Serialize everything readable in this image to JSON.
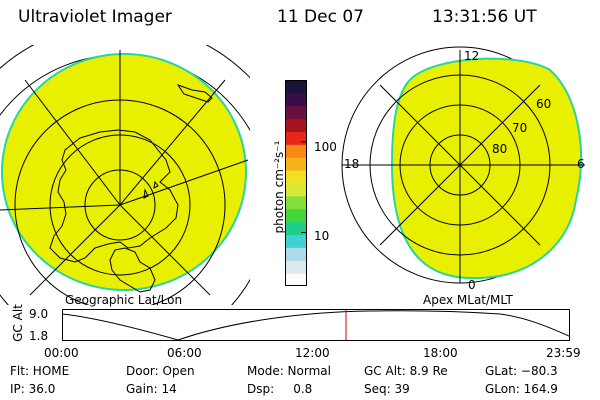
{
  "header": {
    "title": "Ultraviolet Imager",
    "date": "11 Dec 07",
    "time": "13:31:56 UT"
  },
  "left_panel": {
    "label": "Geographic Lat/Lon"
  },
  "right_panel": {
    "label": "Apex MLat/MLT",
    "mlt_labels": {
      "top": "12",
      "left": "18",
      "right": "6",
      "bottom": "0"
    },
    "lat_labels": [
      "60",
      "70",
      "80"
    ]
  },
  "colorbar": {
    "unit_label": "photon cm⁻²s⁻¹",
    "tick_labels": [
      "100",
      "10"
    ],
    "colors": [
      "#fbfbfb",
      "#dde8ee",
      "#aadbe6",
      "#3fd0d2",
      "#1ecf8a",
      "#43d63a",
      "#83e03a",
      "#d8e83a",
      "#f4e023",
      "#f7b21c",
      "#f58a14",
      "#e8271b",
      "#a6141d",
      "#6a0e3c",
      "#3a0d4a",
      "#1b1238"
    ]
  },
  "timeline": {
    "ylabel": "GC Alt",
    "y_ticks": [
      "9.0",
      "1.8"
    ],
    "x_ticks": [
      "00:00",
      "06:00",
      "12:00",
      "18:00",
      "23:59"
    ],
    "marker_color": "#cc0000"
  },
  "footer": [
    [
      "Flt: HOME",
      "Door: Open",
      "Mode: Normal",
      "GC Alt: 8.9 Re",
      "GLat: −80.3"
    ],
    [
      "IP: 36.0",
      "Gain: 14",
      "Dsp:     0.8",
      "Seq: 39",
      "GLon: 164.9"
    ]
  ],
  "colors": {
    "fill": "#e8f000",
    "rim": "#26d6a0",
    "grid": "#000000"
  }
}
